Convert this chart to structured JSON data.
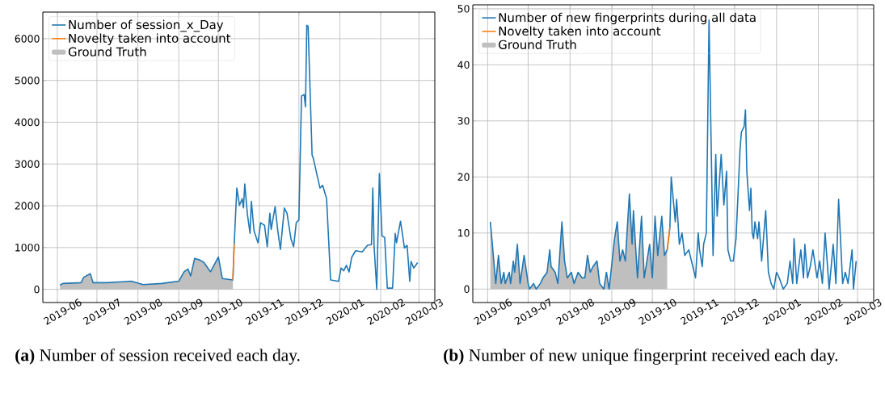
{
  "chart_data": [
    {
      "type": "line",
      "xlim": [
        "2019-05-21",
        "2020-03-13"
      ],
      "ylim": [
        -316,
        6636
      ],
      "xticks": [
        "2019-06",
        "2019-07",
        "2019-08",
        "2019-09",
        "2019-10",
        "2019-11",
        "2019-12",
        "2020-01",
        "2020-02",
        "2020-03"
      ],
      "yticks": [
        0,
        1000,
        2000,
        3000,
        4000,
        5000,
        6000
      ],
      "grid": true,
      "legend": "top left",
      "marker": "none",
      "line_style": "solid",
      "series": [
        {
          "name": "Ground Truth",
          "type": "area",
          "color": "#bfbfbf",
          "x": [
            "2019-06-03",
            "2019-06-05",
            "2019-06-19",
            "2019-06-21",
            "2019-06-26",
            "2019-06-28",
            "2019-07-09",
            "2019-07-20",
            "2019-07-27",
            "2019-08-05",
            "2019-08-19",
            "2019-09-01",
            "2019-09-05",
            "2019-09-08",
            "2019-09-10",
            "2019-09-13",
            "2019-09-17",
            "2019-09-20",
            "2019-09-25",
            "2019-10-01",
            "2019-10-04",
            "2019-10-12"
          ],
          "values": [
            100,
            140,
            160,
            290,
            375,
            160,
            160,
            180,
            195,
            115,
            140,
            195,
            420,
            485,
            320,
            740,
            700,
            645,
            420,
            775,
            260,
            225
          ]
        },
        {
          "name": "Number of session_x_Day",
          "color": "#1f77b4",
          "x": [
            "2019-06-03",
            "2019-06-05",
            "2019-06-19",
            "2019-06-21",
            "2019-06-26",
            "2019-06-28",
            "2019-07-09",
            "2019-07-20",
            "2019-07-27",
            "2019-08-05",
            "2019-08-19",
            "2019-09-01",
            "2019-09-05",
            "2019-09-08",
            "2019-09-10",
            "2019-09-13",
            "2019-09-17",
            "2019-09-20",
            "2019-09-25",
            "2019-10-01",
            "2019-10-04",
            "2019-10-12",
            "2019-10-13",
            "2019-10-15",
            "2019-10-17",
            "2019-10-19",
            "2019-10-20",
            "2019-10-21",
            "2019-10-23",
            "2019-10-25",
            "2019-10-26",
            "2019-10-28",
            "2019-10-31",
            "2019-11-02",
            "2019-11-05",
            "2019-11-07",
            "2019-11-09",
            "2019-11-10",
            "2019-11-13",
            "2019-11-15",
            "2019-11-17",
            "2019-11-20",
            "2019-11-22",
            "2019-11-25",
            "2019-11-27",
            "2019-11-29",
            "2019-12-01",
            "2019-12-03",
            "2019-12-05",
            "2019-12-06",
            "2019-12-07",
            "2019-12-08",
            "2019-12-11",
            "2019-12-12",
            "2019-12-17",
            "2019-12-19",
            "2019-12-22",
            "2019-12-24",
            "2019-12-25",
            "2019-12-31",
            "2020-01-02",
            "2020-01-04",
            "2020-01-06",
            "2020-01-08",
            "2020-01-10",
            "2020-01-13",
            "2020-01-18",
            "2020-01-22",
            "2020-01-25",
            "2020-01-26",
            "2020-01-27",
            "2020-01-29",
            "2020-01-31",
            "2020-02-02",
            "2020-02-04",
            "2020-02-06",
            "2020-02-10",
            "2020-02-12",
            "2020-02-13",
            "2020-02-16",
            "2020-02-19",
            "2020-02-21",
            "2020-02-23",
            "2020-02-24",
            "2020-02-26",
            "2020-02-29"
          ],
          "values": [
            100,
            140,
            160,
            290,
            375,
            160,
            160,
            180,
            195,
            115,
            140,
            195,
            420,
            485,
            320,
            740,
            700,
            645,
            420,
            775,
            260,
            225,
            1085,
            2425,
            2010,
            2170,
            1950,
            2520,
            1790,
            1340,
            2105,
            1405,
            1115,
            1595,
            1530,
            1020,
            1820,
            1435,
            1980,
            1405,
            955,
            1945,
            1820,
            1210,
            1020,
            1595,
            1660,
            4630,
            4660,
            4370,
            6320,
            6290,
            3220,
            3125,
            2425,
            2490,
            2170,
            895,
            225,
            190,
            510,
            445,
            575,
            415,
            765,
            925,
            895,
            1055,
            1070,
            2425,
            1020,
            0,
            2775,
            1275,
            1245,
            30,
            30,
            1340,
            1115,
            1630,
            990,
            1055,
            190,
            670,
            510,
            640
          ]
        },
        {
          "name": "Novelty taken into account",
          "color": "#ff7f0e",
          "x": [
            "2019-10-12",
            "2019-10-13"
          ],
          "values": [
            225,
            1085
          ]
        }
      ],
      "annotations": [
        "**(a)** Number of session received each day."
      ]
    },
    {
      "type": "line",
      "xlim": [
        "2019-05-21",
        "2020-03-13"
      ],
      "ylim": [
        -2.4,
        50.7
      ],
      "xticks": [
        "2019-06",
        "2019-07",
        "2019-08",
        "2019-09",
        "2019-10",
        "2019-11",
        "2019-12",
        "2020-01",
        "2020-02",
        "2020-03"
      ],
      "yticks": [
        0,
        10,
        20,
        30,
        40,
        50
      ],
      "grid": true,
      "legend": "top left",
      "marker": "none",
      "line_style": "solid",
      "series": [
        {
          "name": "Ground Truth",
          "type": "area",
          "color": "#bfbfbf",
          "x": [
            "2019-06-03",
            "2019-06-07",
            "2019-06-09",
            "2019-06-11",
            "2019-06-13",
            "2019-06-14",
            "2019-06-17",
            "2019-06-18",
            "2019-06-20",
            "2019-06-21",
            "2019-06-23",
            "2019-06-25",
            "2019-06-28",
            "2019-07-01",
            "2019-07-02",
            "2019-07-05",
            "2019-07-07",
            "2019-07-10",
            "2019-07-12",
            "2019-07-15",
            "2019-07-17",
            "2019-07-18",
            "2019-07-21",
            "2019-07-23",
            "2019-07-26",
            "2019-07-28",
            "2019-07-30",
            "2019-08-02",
            "2019-08-04",
            "2019-08-07",
            "2019-08-10",
            "2019-08-12",
            "2019-08-14",
            "2019-08-16",
            "2019-08-18",
            "2019-08-21",
            "2019-08-23",
            "2019-08-26",
            "2019-08-28",
            "2019-08-30",
            "2019-09-03",
            "2019-09-05",
            "2019-09-07",
            "2019-09-09",
            "2019-09-11",
            "2019-09-14",
            "2019-09-16",
            "2019-09-17",
            "2019-09-20",
            "2019-09-23",
            "2019-09-25",
            "2019-09-29",
            "2019-10-01",
            "2019-10-03",
            "2019-10-05",
            "2019-10-08",
            "2019-10-10",
            "2019-10-12"
          ],
          "values": [
            12,
            1,
            6,
            1,
            3,
            1,
            3,
            1,
            5,
            3,
            8,
            1,
            6,
            1,
            0,
            1,
            0,
            1,
            2,
            3,
            7,
            4,
            3,
            1,
            12,
            5,
            2,
            3,
            1,
            3,
            2,
            2,
            6,
            3,
            4,
            5,
            1,
            0,
            3,
            0,
            9,
            12,
            5,
            7,
            5,
            17,
            8,
            14,
            2,
            13,
            2,
            8,
            2,
            13,
            6,
            13,
            6,
            7
          ]
        },
        {
          "name": "Number of new fingerprints during all data",
          "color": "#1f77b4",
          "x": [
            "2019-06-03",
            "2019-06-07",
            "2019-06-09",
            "2019-06-11",
            "2019-06-13",
            "2019-06-14",
            "2019-06-17",
            "2019-06-18",
            "2019-06-20",
            "2019-06-21",
            "2019-06-23",
            "2019-06-25",
            "2019-06-28",
            "2019-07-01",
            "2019-07-02",
            "2019-07-05",
            "2019-07-07",
            "2019-07-10",
            "2019-07-12",
            "2019-07-15",
            "2019-07-17",
            "2019-07-18",
            "2019-07-21",
            "2019-07-23",
            "2019-07-26",
            "2019-07-28",
            "2019-07-30",
            "2019-08-02",
            "2019-08-04",
            "2019-08-07",
            "2019-08-10",
            "2019-08-12",
            "2019-08-14",
            "2019-08-16",
            "2019-08-18",
            "2019-08-21",
            "2019-08-23",
            "2019-08-26",
            "2019-08-28",
            "2019-08-30",
            "2019-09-03",
            "2019-09-05",
            "2019-09-07",
            "2019-09-09",
            "2019-09-11",
            "2019-09-14",
            "2019-09-16",
            "2019-09-17",
            "2019-09-20",
            "2019-09-23",
            "2019-09-25",
            "2019-09-29",
            "2019-10-01",
            "2019-10-03",
            "2019-10-05",
            "2019-10-08",
            "2019-10-10",
            "2019-10-12",
            "2019-10-14",
            "2019-10-15",
            "2019-10-18",
            "2019-10-19",
            "2019-10-21",
            "2019-10-23",
            "2019-10-25",
            "2019-10-28",
            "2019-10-31",
            "2019-11-02",
            "2019-11-04",
            "2019-11-05",
            "2019-11-07",
            "2019-11-08",
            "2019-11-10",
            "2019-11-12",
            "2019-11-15",
            "2019-11-17",
            "2019-11-18",
            "2019-11-21",
            "2019-11-23",
            "2019-11-25",
            "2019-11-26",
            "2019-11-28",
            "2019-11-30",
            "2019-12-02",
            "2019-12-05",
            "2019-12-06",
            "2019-12-08",
            "2019-12-09",
            "2019-12-10",
            "2019-12-12",
            "2019-12-13",
            "2019-12-14",
            "2019-12-15",
            "2019-12-16",
            "2019-12-18",
            "2019-12-19",
            "2019-12-21",
            "2019-12-24",
            "2019-12-26",
            "2019-12-28",
            "2019-12-30",
            "2020-01-01",
            "2020-01-03",
            "2020-01-06",
            "2020-01-09",
            "2020-01-11",
            "2020-01-13",
            "2020-01-14",
            "2020-01-16",
            "2020-01-19",
            "2020-01-21",
            "2020-01-22",
            "2020-01-24",
            "2020-01-26",
            "2020-01-28",
            "2020-01-31",
            "2020-02-02",
            "2020-02-04",
            "2020-02-06",
            "2020-02-09",
            "2020-02-12",
            "2020-02-14",
            "2020-02-16",
            "2020-02-19",
            "2020-02-21",
            "2020-02-23",
            "2020-02-26",
            "2020-02-27",
            "2020-02-29"
          ],
          "values": [
            12,
            1,
            6,
            1,
            3,
            1,
            3,
            1,
            5,
            3,
            8,
            1,
            6,
            1,
            0,
            1,
            0,
            1,
            2,
            3,
            7,
            4,
            3,
            1,
            12,
            5,
            2,
            3,
            1,
            3,
            2,
            2,
            6,
            3,
            4,
            5,
            1,
            0,
            3,
            0,
            9,
            12,
            5,
            7,
            5,
            17,
            8,
            14,
            2,
            13,
            2,
            8,
            2,
            13,
            6,
            13,
            6,
            7,
            11,
            20,
            12,
            16,
            8,
            10,
            6,
            7,
            4,
            2,
            10,
            7,
            4,
            8,
            10,
            48,
            6,
            24,
            13,
            24,
            15,
            21,
            7,
            5,
            5,
            9,
            25,
            28,
            29,
            32,
            21,
            14,
            18,
            10,
            9,
            12,
            9,
            12,
            5,
            14,
            3,
            1,
            0,
            3,
            2,
            0,
            1,
            5,
            1,
            9,
            1,
            7,
            2,
            8,
            2,
            4,
            7,
            2,
            5,
            1,
            10,
            0,
            8,
            1,
            16,
            1,
            3,
            1,
            7,
            0,
            5
          ]
        },
        {
          "name": "Novelty taken into account",
          "color": "#ff7f0e",
          "x": [
            "2019-10-12",
            "2019-10-14"
          ],
          "values": [
            7,
            11
          ]
        }
      ],
      "annotations": [
        "**(b)** Number of new unique fingerprint received each day."
      ]
    }
  ]
}
